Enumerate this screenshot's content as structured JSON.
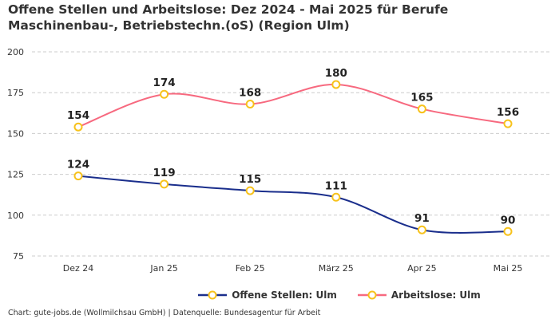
{
  "title": "Offene Stellen und Arbeitslose: Dez 2024 - Mai 2025 für Berufe Maschinenbau-, Betriebstechn.(oS) (Region Ulm)",
  "credit": "Chart: gute-jobs.de (Wollmilchsau GmbH) | Datenquelle: Bundesagentur für Arbeit",
  "chart_data": {
    "type": "line",
    "title": "Offene Stellen und Arbeitslose: Dez 2024 - Mai 2025 für Berufe Maschinenbau-, Betriebstechn.(oS) (Region Ulm)",
    "categories": [
      "Dez 24",
      "Jan 25",
      "Feb 25",
      "März 25",
      "Apr 25",
      "Mai 25"
    ],
    "yticks": [
      75,
      100,
      125,
      150,
      175,
      200
    ],
    "ylim": [
      75,
      200
    ],
    "grid": true,
    "legend_position": "bottom",
    "series": [
      {
        "name": "Offene Stellen: Ulm",
        "color": "#1a2e8c",
        "values": [
          124,
          119,
          115,
          111,
          91,
          90
        ]
      },
      {
        "name": "Arbeitslose: Ulm",
        "color": "#f7697f",
        "values": [
          154,
          174,
          168,
          180,
          165,
          156
        ]
      }
    ],
    "marker_color": "#f7c21b"
  }
}
